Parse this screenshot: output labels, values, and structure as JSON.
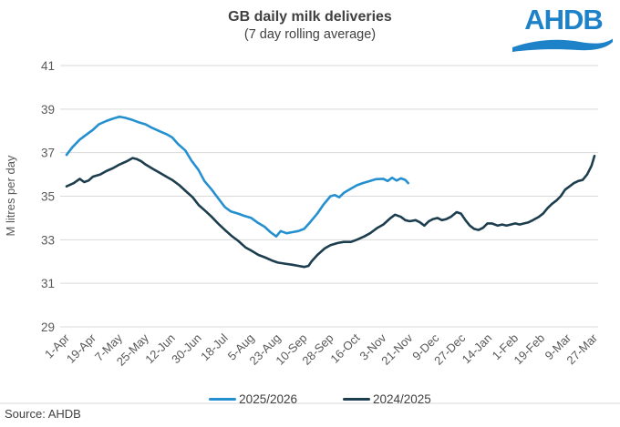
{
  "logo": {
    "text": "AHDB",
    "color": "#1e82c8"
  },
  "footer": {
    "source": "Source: AHDB"
  },
  "colors": {
    "grid": "#d9d9d9",
    "tick_text": "#595959",
    "title_text": "#404040"
  },
  "chart_data": {
    "type": "line",
    "title": "GB daily milk deliveries",
    "subtitle": "(7 day rolling average)",
    "ylabel": "M litres per day",
    "ylim": [
      29,
      41
    ],
    "yticks": [
      29,
      31,
      33,
      35,
      37,
      39,
      41
    ],
    "grid": "horizontal",
    "legend_position": "bottom",
    "x_unit": "days since 1-Apr",
    "x_tick_interval_days": 18,
    "x_tick_labels": [
      "1-Apr",
      "19-Apr",
      "7-May",
      "25-May",
      "12-Jun",
      "30-Jun",
      "18-Jul",
      "5-Aug",
      "23-Aug",
      "10-Sep",
      "28-Sep",
      "16-Oct",
      "3-Nov",
      "21-Nov",
      "9-Dec",
      "27-Dec",
      "14-Jan",
      "1-Feb",
      "19-Feb",
      "9-Mar",
      "27-Mar"
    ],
    "series": [
      {
        "name": "2025/2026",
        "color": "#2590d0",
        "points": [
          [
            0,
            36.9
          ],
          [
            4,
            37.25
          ],
          [
            9,
            37.6
          ],
          [
            14,
            37.85
          ],
          [
            18,
            38.05
          ],
          [
            22,
            38.3
          ],
          [
            27,
            38.45
          ],
          [
            31,
            38.55
          ],
          [
            36,
            38.65
          ],
          [
            40,
            38.6
          ],
          [
            45,
            38.5
          ],
          [
            49,
            38.4
          ],
          [
            54,
            38.3
          ],
          [
            58,
            38.15
          ],
          [
            63,
            38.0
          ],
          [
            68,
            37.85
          ],
          [
            72,
            37.7
          ],
          [
            76,
            37.4
          ],
          [
            81,
            37.1
          ],
          [
            85,
            36.65
          ],
          [
            90,
            36.2
          ],
          [
            94,
            35.7
          ],
          [
            99,
            35.3
          ],
          [
            104,
            34.85
          ],
          [
            108,
            34.5
          ],
          [
            112,
            34.3
          ],
          [
            117,
            34.2
          ],
          [
            121,
            34.1
          ],
          [
            126,
            34.0
          ],
          [
            130,
            33.8
          ],
          [
            135,
            33.6
          ],
          [
            139,
            33.35
          ],
          [
            143,
            33.15
          ],
          [
            146,
            33.4
          ],
          [
            150,
            33.3
          ],
          [
            154,
            33.35
          ],
          [
            158,
            33.4
          ],
          [
            162,
            33.5
          ],
          [
            166,
            33.8
          ],
          [
            171,
            34.2
          ],
          [
            175,
            34.6
          ],
          [
            180,
            35.0
          ],
          [
            183,
            35.05
          ],
          [
            186,
            34.95
          ],
          [
            189,
            35.15
          ],
          [
            194,
            35.35
          ],
          [
            198,
            35.5
          ],
          [
            202,
            35.6
          ],
          [
            207,
            35.7
          ],
          [
            211,
            35.78
          ],
          [
            216,
            35.8
          ],
          [
            219,
            35.7
          ],
          [
            222,
            35.85
          ],
          [
            225,
            35.72
          ],
          [
            228,
            35.82
          ],
          [
            231,
            35.75
          ],
          [
            233,
            35.6
          ]
        ]
      },
      {
        "name": "2024/2025",
        "color": "#1d3e4e",
        "points": [
          [
            0,
            35.45
          ],
          [
            5,
            35.6
          ],
          [
            9,
            35.8
          ],
          [
            12,
            35.65
          ],
          [
            15,
            35.72
          ],
          [
            18,
            35.9
          ],
          [
            23,
            36.0
          ],
          [
            27,
            36.15
          ],
          [
            32,
            36.3
          ],
          [
            36,
            36.45
          ],
          [
            41,
            36.6
          ],
          [
            45,
            36.75
          ],
          [
            48,
            36.7
          ],
          [
            51,
            36.6
          ],
          [
            54,
            36.45
          ],
          [
            59,
            36.25
          ],
          [
            63,
            36.1
          ],
          [
            68,
            35.9
          ],
          [
            72,
            35.75
          ],
          [
            77,
            35.5
          ],
          [
            81,
            35.25
          ],
          [
            86,
            34.95
          ],
          [
            90,
            34.6
          ],
          [
            95,
            34.3
          ],
          [
            99,
            34.05
          ],
          [
            104,
            33.7
          ],
          [
            108,
            33.45
          ],
          [
            113,
            33.15
          ],
          [
            117,
            32.95
          ],
          [
            122,
            32.65
          ],
          [
            126,
            32.5
          ],
          [
            131,
            32.3
          ],
          [
            135,
            32.2
          ],
          [
            140,
            32.05
          ],
          [
            144,
            31.95
          ],
          [
            149,
            31.9
          ],
          [
            154,
            31.85
          ],
          [
            158,
            31.8
          ],
          [
            162,
            31.75
          ],
          [
            165,
            31.8
          ],
          [
            167,
            32.0
          ],
          [
            171,
            32.3
          ],
          [
            176,
            32.6
          ],
          [
            180,
            32.75
          ],
          [
            185,
            32.85
          ],
          [
            189,
            32.9
          ],
          [
            194,
            32.9
          ],
          [
            198,
            33.0
          ],
          [
            203,
            33.15
          ],
          [
            207,
            33.3
          ],
          [
            212,
            33.55
          ],
          [
            216,
            33.7
          ],
          [
            221,
            34.0
          ],
          [
            224,
            34.15
          ],
          [
            228,
            34.05
          ],
          [
            231,
            33.9
          ],
          [
            234,
            33.85
          ],
          [
            238,
            33.9
          ],
          [
            241,
            33.8
          ],
          [
            244,
            33.65
          ],
          [
            247,
            33.85
          ],
          [
            250,
            33.95
          ],
          [
            253,
            34.0
          ],
          [
            256,
            33.9
          ],
          [
            259,
            33.95
          ],
          [
            262,
            34.05
          ],
          [
            266,
            34.27
          ],
          [
            269,
            34.2
          ],
          [
            272,
            33.9
          ],
          [
            275,
            33.65
          ],
          [
            278,
            33.5
          ],
          [
            281,
            33.45
          ],
          [
            284,
            33.55
          ],
          [
            287,
            33.75
          ],
          [
            290,
            33.75
          ],
          [
            294,
            33.65
          ],
          [
            297,
            33.7
          ],
          [
            300,
            33.65
          ],
          [
            303,
            33.7
          ],
          [
            306,
            33.75
          ],
          [
            309,
            33.7
          ],
          [
            312,
            33.75
          ],
          [
            315,
            33.8
          ],
          [
            318,
            33.9
          ],
          [
            322,
            34.05
          ],
          [
            325,
            34.2
          ],
          [
            328,
            34.45
          ],
          [
            331,
            34.65
          ],
          [
            334,
            34.8
          ],
          [
            337,
            35.0
          ],
          [
            340,
            35.3
          ],
          [
            343,
            35.45
          ],
          [
            346,
            35.6
          ],
          [
            349,
            35.7
          ],
          [
            352,
            35.75
          ],
          [
            355,
            36.0
          ],
          [
            358,
            36.4
          ],
          [
            360,
            36.85
          ]
        ]
      }
    ]
  }
}
